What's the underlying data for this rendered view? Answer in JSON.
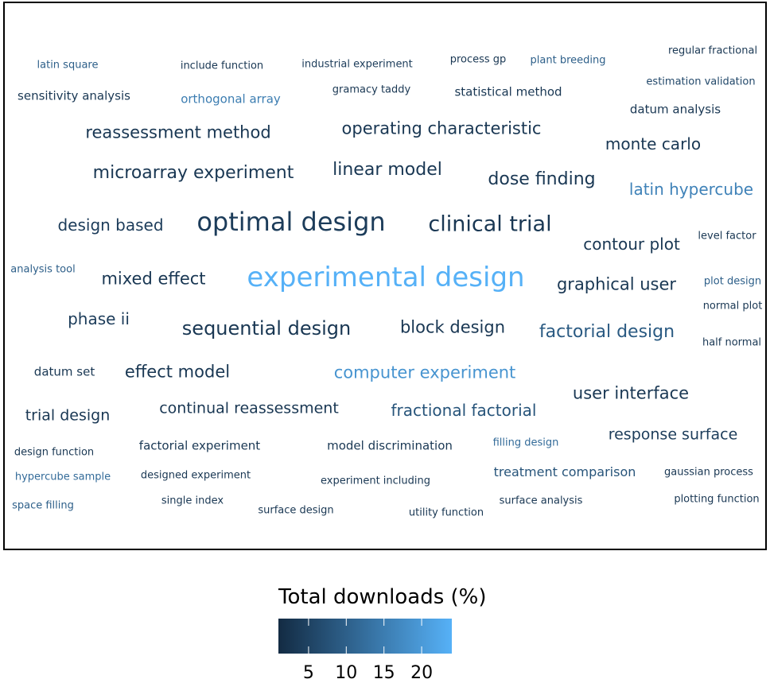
{
  "chart_data": {
    "type": "wordcloud",
    "legend": {
      "title": "Total downloads (%)",
      "ticks": [
        5,
        10,
        15,
        20
      ],
      "range": [
        1,
        24
      ],
      "color_low": "#132B43",
      "color_high": "#56B1F7"
    },
    "words": [
      {
        "text": "experimental design",
        "value": 24
      },
      {
        "text": "optimal design",
        "value": 4
      },
      {
        "text": "clinical trial",
        "value": 3
      },
      {
        "text": "sequential design",
        "value": 3
      },
      {
        "text": "computer experiment",
        "value": 19
      },
      {
        "text": "latin hypercube",
        "value": 16
      },
      {
        "text": "orthogonal array",
        "value": 15
      },
      {
        "text": "factorial design",
        "value": 9
      },
      {
        "text": "fractional factorial",
        "value": 8
      },
      {
        "text": "treatment comparison",
        "value": 8
      },
      {
        "text": "plant breeding",
        "value": 10
      },
      {
        "text": "filling design",
        "value": 12
      },
      {
        "text": "hypercube sample",
        "value": 12
      },
      {
        "text": "space filling",
        "value": 10
      },
      {
        "text": "analysis tool",
        "value": 10
      },
      {
        "text": "latin square",
        "value": 10
      },
      {
        "text": "plot design",
        "value": 10
      },
      {
        "text": "estimation validation",
        "value": 6
      },
      {
        "text": "microarray experiment",
        "value": 3
      },
      {
        "text": "reassessment method",
        "value": 3
      },
      {
        "text": "operating characteristic",
        "value": 3
      },
      {
        "text": "linear model",
        "value": 3
      },
      {
        "text": "dose finding",
        "value": 3
      },
      {
        "text": "monte carlo",
        "value": 3
      },
      {
        "text": "design based",
        "value": 4
      },
      {
        "text": "contour plot",
        "value": 3
      },
      {
        "text": "mixed effect",
        "value": 3
      },
      {
        "text": "graphical user",
        "value": 3
      },
      {
        "text": "phase ii",
        "value": 4
      },
      {
        "text": "block design",
        "value": 3
      },
      {
        "text": "effect model",
        "value": 3
      },
      {
        "text": "user interface",
        "value": 3
      },
      {
        "text": "continual reassessment",
        "value": 3
      },
      {
        "text": "trial design",
        "value": 3
      },
      {
        "text": "response surface",
        "value": 4
      },
      {
        "text": "sensitivity analysis",
        "value": 3
      },
      {
        "text": "statistical method",
        "value": 3
      },
      {
        "text": "datum analysis",
        "value": 3
      },
      {
        "text": "include function",
        "value": 3
      },
      {
        "text": "industrial experiment",
        "value": 4
      },
      {
        "text": "process gp",
        "value": 3
      },
      {
        "text": "regular fractional",
        "value": 3
      },
      {
        "text": "gramacy taddy",
        "value": 3
      },
      {
        "text": "level factor",
        "value": 3
      },
      {
        "text": "normal plot",
        "value": 3
      },
      {
        "text": "half normal",
        "value": 3
      },
      {
        "text": "datum set",
        "value": 3
      },
      {
        "text": "design function",
        "value": 3
      },
      {
        "text": "factorial experiment",
        "value": 3
      },
      {
        "text": "model discrimination",
        "value": 3
      },
      {
        "text": "designed experiment",
        "value": 3
      },
      {
        "text": "experiment including",
        "value": 3
      },
      {
        "text": "gaussian process",
        "value": 3
      },
      {
        "text": "single index",
        "value": 3
      },
      {
        "text": "surface design",
        "value": 3
      },
      {
        "text": "utility function",
        "value": 3
      },
      {
        "text": "surface analysis",
        "value": 3
      },
      {
        "text": "plotting function",
        "value": 3
      }
    ]
  }
}
